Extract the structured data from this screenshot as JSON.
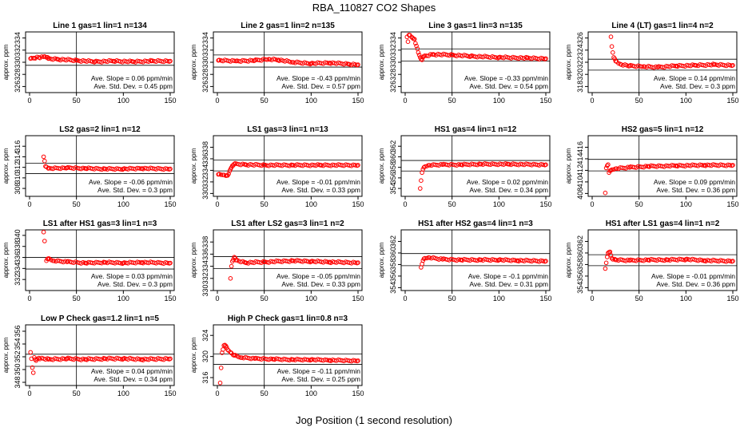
{
  "figure": {
    "title": "RBA_110827  CO2 Shapes",
    "xlabel": "Jog Position (1 second resolution)"
  },
  "chart_data": [
    {
      "type": "scatter",
      "title": "Line 1 gas=1 lin=1 n=134",
      "ylabel": "approx. ppm",
      "xlim": [
        0,
        150
      ],
      "ylim": [
        325,
        335
      ],
      "yticks": [
        326,
        328,
        330,
        332,
        334
      ],
      "xticks": [
        0,
        50,
        100,
        150
      ],
      "vline": 50,
      "hlines": [
        329.5,
        331.5
      ],
      "points": [
        [
          1,
          330.6
        ],
        [
          5,
          330.7
        ],
        [
          10,
          330.8
        ],
        [
          15,
          330.9
        ],
        [
          18,
          330.8
        ],
        [
          20,
          330.6
        ],
        [
          30,
          330.5
        ],
        [
          50,
          330.3
        ],
        [
          70,
          330.1
        ],
        [
          90,
          330.2
        ],
        [
          110,
          330.1
        ],
        [
          130,
          330.2
        ],
        [
          150,
          330.2
        ]
      ],
      "annotations": [
        "Ave. Slope = 0.06  ppm/min",
        "Ave. Std. Dev. = 0.45  ppm"
      ]
    },
    {
      "type": "scatter",
      "title": "Line 2 gas=1 lin=2 n=135",
      "ylabel": "approx. ppm",
      "xlim": [
        0,
        150
      ],
      "ylim": [
        325,
        335
      ],
      "yticks": [
        326,
        328,
        330,
        332,
        334
      ],
      "xticks": [
        0,
        50,
        100,
        150
      ],
      "vline": 50,
      "hlines": [
        329.2,
        331.2
      ],
      "points": [
        [
          1,
          330.3
        ],
        [
          20,
          330.2
        ],
        [
          40,
          330.3
        ],
        [
          55,
          330.5
        ],
        [
          65,
          330.4
        ],
        [
          80,
          330.0
        ],
        [
          100,
          329.8
        ],
        [
          120,
          329.9
        ],
        [
          140,
          329.7
        ],
        [
          150,
          329.6
        ]
      ],
      "annotations": [
        "Ave. Slope = -0.43  ppm/min",
        "Ave. Std. Dev. = 0.57  ppm"
      ]
    },
    {
      "type": "scatter",
      "title": "Line 3 gas=1 lin=3 n=135",
      "ylabel": "approx. ppm",
      "xlim": [
        0,
        150
      ],
      "ylim": [
        325,
        335
      ],
      "yticks": [
        326,
        328,
        330,
        332,
        334
      ],
      "xticks": [
        0,
        50,
        100,
        150
      ],
      "vline": 50,
      "hlines": [
        330.2,
        332.2
      ],
      "points": [
        [
          1,
          334.8
        ],
        [
          4,
          334.5
        ],
        [
          8,
          334.0
        ],
        [
          3,
          333.4
        ],
        [
          10,
          333.8
        ],
        [
          12,
          332.7
        ],
        [
          14,
          331.6
        ],
        [
          16,
          330.8
        ],
        [
          18,
          330.4
        ],
        [
          20,
          331.0
        ],
        [
          30,
          331.3
        ],
        [
          50,
          331.2
        ],
        [
          70,
          331.0
        ],
        [
          100,
          330.8
        ],
        [
          130,
          330.7
        ],
        [
          150,
          330.6
        ]
      ],
      "annotations": [
        "Ave. Slope = -0.33  ppm/min",
        "Ave. Std. Dev. = 0.54  ppm"
      ]
    },
    {
      "type": "scatter",
      "title": "Line 4 (LT) gas=1 lin=4 n=2",
      "ylabel": "approx. ppm",
      "xlim": [
        0,
        150
      ],
      "ylim": [
        317,
        327
      ],
      "yticks": [
        318,
        320,
        322,
        324,
        326
      ],
      "xticks": [
        0,
        50,
        100,
        150
      ],
      "vline": 50,
      "hlines": [
        320.7,
        322.5
      ],
      "points": [
        [
          20,
          326.2
        ],
        [
          21,
          324.6
        ],
        [
          22,
          323.6
        ],
        [
          23,
          322.8
        ],
        [
          25,
          322.2
        ],
        [
          30,
          321.7
        ],
        [
          40,
          321.4
        ],
        [
          55,
          321.3
        ],
        [
          70,
          321.2
        ],
        [
          90,
          321.4
        ],
        [
          110,
          321.5
        ],
        [
          130,
          321.6
        ],
        [
          150,
          321.5
        ]
      ],
      "annotations": [
        "Ave. Slope = 0.14  ppm/min",
        "Ave. Std. Dev. = 0.3  ppm"
      ]
    },
    {
      "type": "scatter",
      "title": "LS2 gas=2 lin=1 n=12",
      "ylabel": "approx. ppm",
      "xlim": [
        0,
        150
      ],
      "ylim": [
        306.5,
        318
      ],
      "yticks": [
        308,
        310,
        312,
        314,
        316
      ],
      "xticks": [
        0,
        50,
        100,
        150
      ],
      "vline": 50,
      "hlines": [
        310.8,
        312.8
      ],
      "points": [
        [
          15,
          314.0
        ],
        [
          17,
          312.2
        ],
        [
          20,
          311.8
        ],
        [
          40,
          311.9
        ],
        [
          60,
          311.8
        ],
        [
          80,
          311.7
        ],
        [
          100,
          311.7
        ],
        [
          120,
          311.8
        ],
        [
          150,
          311.7
        ]
      ],
      "annotations": [
        "Ave. Slope = -0.06  ppm/min",
        "Ave. Std. Dev. = 0.3  ppm"
      ]
    },
    {
      "type": "scatter",
      "title": "LS1 gas=3 lin=1 n=13",
      "ylabel": "approx. ppm",
      "xlim": [
        0,
        150
      ],
      "ylim": [
        329.5,
        340
      ],
      "yticks": [
        330,
        332,
        334,
        336,
        338
      ],
      "xticks": [
        0,
        50,
        100,
        150
      ],
      "vline": 50,
      "hlines": [
        333.9,
        335.8
      ],
      "points": [
        [
          1,
          333.3
        ],
        [
          6,
          333.2
        ],
        [
          10,
          333.1
        ],
        [
          12,
          333.4
        ],
        [
          14,
          334.2
        ],
        [
          16,
          334.8
        ],
        [
          18,
          335.1
        ],
        [
          30,
          335.0
        ],
        [
          50,
          334.9
        ],
        [
          80,
          334.9
        ],
        [
          110,
          334.9
        ],
        [
          150,
          334.9
        ]
      ],
      "annotations": [
        "Ave. Slope = -0.01  ppm/min",
        "Ave. Std. Dev. = 0.33  ppm"
      ]
    },
    {
      "type": "scatter",
      "title": "HS1 gas=4 lin=1 n=12",
      "ylabel": "approx. ppm",
      "xlim": [
        0,
        150
      ],
      "ylim": [
        352.5,
        364
      ],
      "yticks": [
        354,
        356,
        358,
        360,
        362
      ],
      "xticks": [
        0,
        50,
        100,
        150
      ],
      "vline": 50,
      "hlines": [
        357.3,
        359.3
      ],
      "points": [
        [
          15,
          352.8
        ],
        [
          16,
          354.0
        ],
        [
          17,
          355.5
        ],
        [
          18,
          357.0
        ],
        [
          20,
          358.0
        ],
        [
          25,
          358.4
        ],
        [
          40,
          358.5
        ],
        [
          60,
          358.5
        ],
        [
          80,
          358.6
        ],
        [
          110,
          358.6
        ],
        [
          150,
          358.5
        ]
      ],
      "annotations": [
        "Ave. Slope = 0.02  ppm/min",
        "Ave. Std. Dev. = 0.34  ppm"
      ]
    },
    {
      "type": "scatter",
      "title": "HS2 gas=5 lin=1 n=12",
      "ylabel": "approx. ppm",
      "xlim": [
        0,
        150
      ],
      "ylim": [
        407.5,
        418
      ],
      "yticks": [
        408,
        410,
        412,
        414,
        416
      ],
      "xticks": [
        0,
        50,
        100,
        150
      ],
      "vline": 50,
      "hlines": [
        411.9,
        413.9
      ],
      "points": [
        [
          14,
          408.1
        ],
        [
          15,
          412.4
        ],
        [
          17,
          413.0
        ],
        [
          18,
          411.6
        ],
        [
          20,
          412.0
        ],
        [
          25,
          412.3
        ],
        [
          40,
          412.5
        ],
        [
          60,
          412.7
        ],
        [
          90,
          412.8
        ],
        [
          120,
          412.9
        ],
        [
          150,
          412.9
        ]
      ],
      "annotations": [
        "Ave. Slope = 0.09  ppm/min",
        "Ave. Std. Dev. = 0.36  ppm"
      ]
    },
    {
      "type": "scatter",
      "title": "LS1 after HS1 gas=3 lin=1 n=3",
      "ylabel": "approx. ppm",
      "xlim": [
        0,
        150
      ],
      "ylim": [
        330,
        341
      ],
      "yticks": [
        332,
        334,
        336,
        338,
        340
      ],
      "xticks": [
        0,
        50,
        100,
        150
      ],
      "vline": 50,
      "hlines": [
        333.9,
        336.0
      ],
      "points": [
        [
          15,
          340.6
        ],
        [
          18,
          335.4
        ],
        [
          20,
          335.8
        ],
        [
          25,
          335.4
        ],
        [
          40,
          335.2
        ],
        [
          60,
          335.0
        ],
        [
          80,
          335.1
        ],
        [
          100,
          335.0
        ],
        [
          120,
          335.1
        ],
        [
          150,
          335.0
        ]
      ],
      "annotations": [
        "Ave. Slope = 0.03  ppm/min",
        "Ave. Std. Dev. = 0.3  ppm"
      ]
    },
    {
      "type": "scatter",
      "title": "LS1 after LS2 gas=3 lin=1 n=2",
      "ylabel": "approx. ppm",
      "xlim": [
        0,
        150
      ],
      "ylim": [
        330,
        340
      ],
      "yticks": [
        330,
        332,
        334,
        336,
        338
      ],
      "xticks": [
        0,
        50,
        100,
        150
      ],
      "vline": 50,
      "hlines": [
        333.6,
        335.6
      ],
      "points": [
        [
          13,
          330.2
        ],
        [
          15,
          334.0
        ],
        [
          16,
          334.8
        ],
        [
          18,
          335.5
        ],
        [
          20,
          335.0
        ],
        [
          30,
          334.6
        ],
        [
          50,
          334.7
        ],
        [
          80,
          334.9
        ],
        [
          100,
          334.8
        ],
        [
          120,
          334.7
        ],
        [
          150,
          334.6
        ]
      ],
      "annotations": [
        "Ave. Slope = -0.05  ppm/min",
        "Ave. Std. Dev. = 0.33  ppm"
      ]
    },
    {
      "type": "scatter",
      "title": "HS1 after HS2 gas=4 lin=1 n=3",
      "ylabel": "approx. ppm",
      "xlim": [
        0,
        150
      ],
      "ylim": [
        353.5,
        364
      ],
      "yticks": [
        354,
        356,
        358,
        360,
        362
      ],
      "xticks": [
        0,
        50,
        100,
        150
      ],
      "vline": 50,
      "hlines": [
        357.8,
        359.9
      ],
      "points": [
        [
          17,
          357.5
        ],
        [
          18,
          358.1
        ],
        [
          20,
          359.0
        ],
        [
          25,
          359.2
        ],
        [
          40,
          358.9
        ],
        [
          60,
          358.8
        ],
        [
          80,
          358.8
        ],
        [
          100,
          358.8
        ],
        [
          120,
          358.7
        ],
        [
          150,
          358.6
        ]
      ],
      "annotations": [
        "Ave. Slope = -0.1  ppm/min",
        "Ave. Std. Dev. = 0.31  ppm"
      ]
    },
    {
      "type": "scatter",
      "title": "HS1 after LS1 gas=4 lin=1 n=2",
      "ylabel": "approx. ppm",
      "xlim": [
        0,
        150
      ],
      "ylim": [
        353.5,
        364
      ],
      "yticks": [
        354,
        356,
        358,
        360,
        362
      ],
      "xticks": [
        0,
        50,
        100,
        150
      ],
      "vline": 50,
      "hlines": [
        357.8,
        359.7
      ],
      "points": [
        [
          14,
          357.3
        ],
        [
          16,
          359.3
        ],
        [
          17,
          360.0
        ],
        [
          19,
          360.2
        ],
        [
          21,
          359.1
        ],
        [
          25,
          358.8
        ],
        [
          40,
          358.7
        ],
        [
          60,
          358.8
        ],
        [
          80,
          358.8
        ],
        [
          100,
          358.9
        ],
        [
          120,
          358.7
        ],
        [
          150,
          358.6
        ]
      ],
      "annotations": [
        "Ave. Slope = -0.01  ppm/min",
        "Ave. Std. Dev. = 0.36  ppm"
      ]
    },
    {
      "type": "scatter",
      "title": "Low P Check gas=1.2 lin=1 n=5",
      "ylabel": "approx. ppm",
      "xlim": [
        0,
        150
      ],
      "ylim": [
        347.5,
        357
      ],
      "yticks": [
        348,
        350,
        352,
        354,
        356
      ],
      "xticks": [
        0,
        50,
        100,
        150
      ],
      "vline": 50,
      "hlines": [
        350.5,
        352.4
      ],
      "points": [
        [
          1,
          352.7
        ],
        [
          2,
          351.7
        ],
        [
          3,
          350.3
        ],
        [
          4,
          349.5
        ],
        [
          5,
          351.9
        ],
        [
          7,
          351.4
        ],
        [
          10,
          351.8
        ],
        [
          20,
          351.6
        ],
        [
          40,
          351.7
        ],
        [
          60,
          351.6
        ],
        [
          80,
          351.7
        ],
        [
          100,
          351.7
        ],
        [
          120,
          351.6
        ],
        [
          150,
          351.7
        ]
      ],
      "annotations": [
        "Ave. Slope = 0.04  ppm/min",
        "Ave. Std. Dev. = 0.34  ppm"
      ]
    },
    {
      "type": "scatter",
      "title": "High P Check gas=1 lin=0.8 n=3",
      "ylabel": "approx. ppm",
      "xlim": [
        0,
        150
      ],
      "ylim": [
        314.5,
        326
      ],
      "yticks": [
        316,
        320,
        324
      ],
      "xticks": [
        0,
        50,
        100,
        150
      ],
      "vline": 50,
      "hlines": [
        318.5,
        320.5
      ],
      "points": [
        [
          3,
          315.0
        ],
        [
          5,
          320.7
        ],
        [
          7,
          322.1
        ],
        [
          9,
          322.0
        ],
        [
          11,
          321.3
        ],
        [
          14,
          320.8
        ],
        [
          18,
          320.2
        ],
        [
          25,
          319.8
        ],
        [
          40,
          319.6
        ],
        [
          60,
          319.5
        ],
        [
          80,
          319.4
        ],
        [
          100,
          319.4
        ],
        [
          120,
          319.3
        ],
        [
          150,
          319.2
        ]
      ],
      "annotations": [
        "Ave. Slope = -0.11  ppm/min",
        "Ave. Std. Dev. = 0.25  ppm"
      ]
    }
  ]
}
